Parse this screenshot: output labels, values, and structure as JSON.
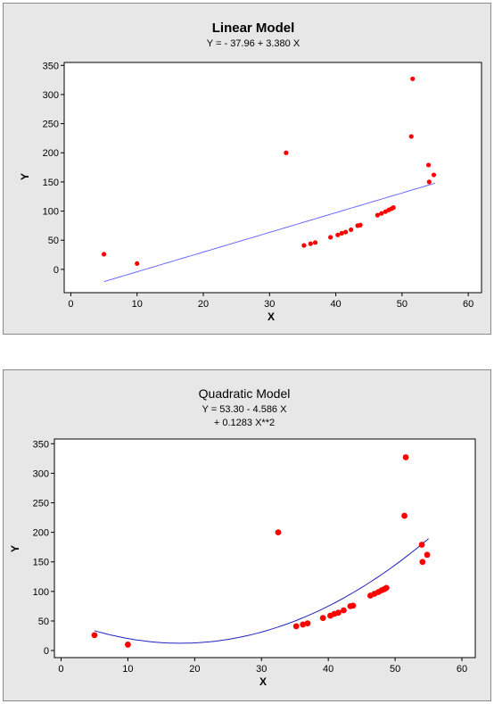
{
  "chart_data": [
    {
      "type": "scatter",
      "title": "Linear Model",
      "equation_lines": [
        "Y =  - 37.96 + 3.380 X"
      ],
      "xlabel": "X",
      "ylabel": "Y",
      "xlim": [
        -1,
        62
      ],
      "ylim": [
        -40,
        355
      ],
      "xticks": [
        0,
        10,
        20,
        30,
        40,
        50,
        60
      ],
      "yticks": [
        0,
        50,
        100,
        150,
        200,
        250,
        300,
        350
      ],
      "grid": false,
      "marker_color": "#ff0000",
      "line_color": "#6a6aff",
      "points": [
        [
          5,
          26
        ],
        [
          10,
          10
        ],
        [
          32.5,
          200
        ],
        [
          35.2,
          41
        ],
        [
          36.2,
          44
        ],
        [
          36.9,
          46
        ],
        [
          39.2,
          55
        ],
        [
          40.3,
          59
        ],
        [
          40.9,
          62
        ],
        [
          41.5,
          64
        ],
        [
          42.3,
          68
        ],
        [
          43.3,
          75
        ],
        [
          43.7,
          76
        ],
        [
          46.3,
          93
        ],
        [
          46.9,
          96
        ],
        [
          47.5,
          99
        ],
        [
          48.0,
          102
        ],
        [
          48.4,
          104
        ],
        [
          48.7,
          106
        ],
        [
          51.4,
          228
        ],
        [
          51.6,
          327
        ],
        [
          54.0,
          179
        ],
        [
          54.1,
          150
        ],
        [
          54.8,
          162
        ]
      ],
      "fit": {
        "intercept": -37.96,
        "b1": 3.38,
        "b2": 0,
        "xrange": [
          5,
          55
        ]
      }
    },
    {
      "type": "scatter",
      "title": "Quadratic Model",
      "equation_lines": [
        "Y =  53.30 - 4.586 X",
        "+ 0.1283 X**2"
      ],
      "xlabel": "X",
      "ylabel": "Y",
      "xlim": [
        -1,
        62
      ],
      "ylim": [
        -12,
        358
      ],
      "xticks": [
        0,
        10,
        20,
        30,
        40,
        50,
        60
      ],
      "yticks": [
        0,
        50,
        100,
        150,
        200,
        250,
        300,
        350
      ],
      "grid": false,
      "marker_color": "#ff0000",
      "line_color": "#2020c0",
      "points": [
        [
          5,
          26
        ],
        [
          10,
          10
        ],
        [
          32.5,
          200
        ],
        [
          35.2,
          41
        ],
        [
          36.2,
          44
        ],
        [
          36.9,
          46
        ],
        [
          39.2,
          55
        ],
        [
          40.3,
          59
        ],
        [
          40.9,
          62
        ],
        [
          41.5,
          64
        ],
        [
          42.3,
          68
        ],
        [
          43.3,
          75
        ],
        [
          43.7,
          76
        ],
        [
          46.3,
          93
        ],
        [
          46.9,
          96
        ],
        [
          47.5,
          99
        ],
        [
          48.0,
          102
        ],
        [
          48.4,
          104
        ],
        [
          48.7,
          106
        ],
        [
          51.4,
          228
        ],
        [
          51.6,
          327
        ],
        [
          54.0,
          179
        ],
        [
          54.1,
          150
        ],
        [
          54.8,
          162
        ]
      ],
      "fit": {
        "intercept": 53.3,
        "b1": -4.586,
        "b2": 0.1283,
        "xrange": [
          5,
          55
        ]
      }
    }
  ]
}
